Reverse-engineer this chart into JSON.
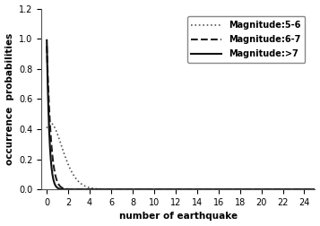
{
  "xlabel": "number of earthquake",
  "ylabel": "occurrence  probabilities",
  "xlim": [
    -0.5,
    25
  ],
  "ylim": [
    0,
    1.2
  ],
  "xticks": [
    0,
    2,
    4,
    6,
    8,
    10,
    12,
    14,
    16,
    18,
    20,
    22,
    24
  ],
  "yticks": [
    0,
    0.2,
    0.4,
    0.6,
    0.8,
    1,
    1.2
  ],
  "legend": [
    {
      "label": "Magnitude:5-6",
      "linestyle": "dotted",
      "color": "#555555",
      "linewidth": 1.2
    },
    {
      "label": "Magnitude:6-7",
      "linestyle": "dashed",
      "color": "#222222",
      "linewidth": 1.5
    },
    {
      "label": "Magnitude:>7",
      "linestyle": "solid",
      "color": "#111111",
      "linewidth": 1.5
    }
  ],
  "poisson_lambdas": [
    0.9,
    0.05,
    0.01
  ],
  "background_color": "#ffffff",
  "fontsize_labels": 7.5,
  "fontsize_ticks": 7,
  "fontsize_legend": 7
}
